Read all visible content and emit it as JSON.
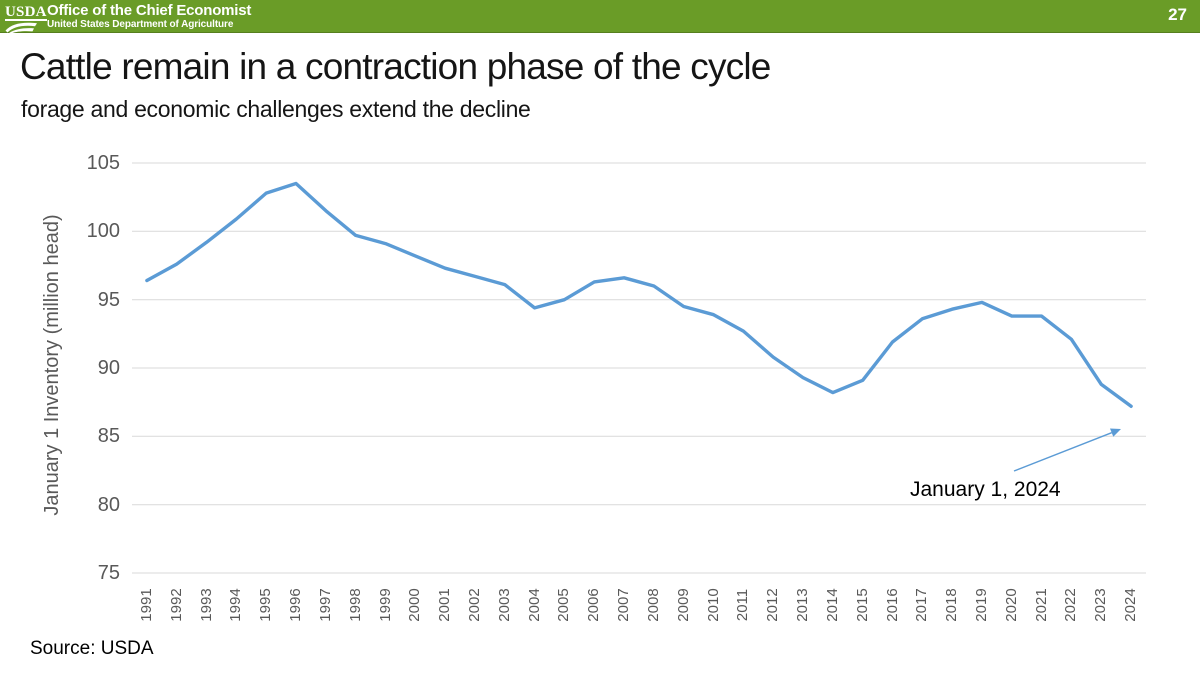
{
  "header": {
    "logo_text": "USDA",
    "org_title": "Office of the Chief Economist",
    "org_subtitle": "United States Department of Agriculture",
    "page_number": "27",
    "accent_green": "#6A9C27"
  },
  "title": "Cattle remain in a contraction phase of the cycle",
  "subtitle": "forage and economic challenges extend the decline",
  "source": "Source: USDA",
  "chart_data": {
    "type": "line",
    "title": "",
    "xlabel": "",
    "ylabel": "January 1 Inventory (million head)",
    "ylim": [
      75,
      105
    ],
    "yticks": [
      75,
      80,
      85,
      90,
      95,
      100,
      105
    ],
    "grid": "horizontal",
    "legend": "none",
    "grid_color": "#D9D9D9",
    "line_color": "#5B9BD5",
    "categories": [
      "1991",
      "1992",
      "1993",
      "1994",
      "1995",
      "1996",
      "1997",
      "1998",
      "1999",
      "2000",
      "2001",
      "2002",
      "2003",
      "2004",
      "2005",
      "2006",
      "2007",
      "2008",
      "2009",
      "2010",
      "2011",
      "2012",
      "2013",
      "2014",
      "2015",
      "2016",
      "2017",
      "2018",
      "2019",
      "2020",
      "2021",
      "2022",
      "2023",
      "2024"
    ],
    "series": [
      {
        "name": "January 1 Inventory (million head)",
        "values": [
          96.4,
          97.6,
          99.2,
          100.9,
          102.8,
          103.5,
          101.5,
          99.7,
          99.1,
          98.2,
          97.3,
          96.7,
          96.1,
          94.4,
          95.0,
          96.3,
          96.6,
          96.0,
          94.5,
          93.9,
          92.7,
          90.8,
          89.3,
          88.2,
          89.1,
          91.9,
          93.6,
          94.3,
          94.8,
          93.8,
          93.8,
          92.1,
          88.8,
          87.2
        ]
      }
    ],
    "annotation": {
      "text": "January 1, 2024",
      "points_to_category": "2024",
      "points_to_value": 87.2
    }
  }
}
